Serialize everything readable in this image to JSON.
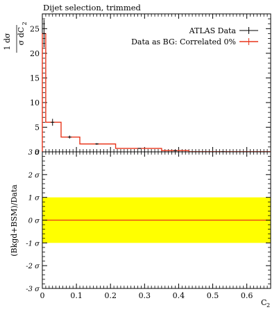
{
  "chart_data": [
    {
      "type": "line",
      "panel": "main",
      "title": "Dijet selection, trimmed",
      "ylabel_main": "1  dσ",
      "ylabel_sub": "σ  dC",
      "ylabel_sub_index": "2",
      "ylim": [
        0,
        28
      ],
      "yticks": [
        {
          "value": 0,
          "label": "0"
        },
        {
          "value": 5,
          "label": "5"
        },
        {
          "value": 10,
          "label": "10"
        },
        {
          "value": 15,
          "label": "15"
        },
        {
          "value": 20,
          "label": "20"
        },
        {
          "value": 25,
          "label": "25"
        }
      ],
      "xlim": [
        0,
        0.67
      ],
      "legend_placement": "top-right",
      "series": [
        {
          "name": "ATLAS Data",
          "color": "#000000",
          "points": [
            {
              "x": 0.005,
              "y": 24.0,
              "err": 2.8
            },
            {
              "x": 0.03,
              "y": 6.0,
              "err": 0.7
            },
            {
              "x": 0.08,
              "y": 3.0,
              "err": 0.3
            },
            {
              "x": 0.16,
              "y": 1.6,
              "err": 0.15
            },
            {
              "x": 0.285,
              "y": 0.7,
              "err": 0.05
            },
            {
              "x": 0.39,
              "y": 0.25,
              "err": 0.03
            },
            {
              "x": 0.53,
              "y": 0.03,
              "err": 0.02
            }
          ]
        },
        {
          "name": "Data as BG: Correlated 0%",
          "color": "#e8341a",
          "type": "step",
          "bins": [
            {
              "x0": 0.0,
              "x1": 0.01,
              "y": 24.0
            },
            {
              "x0": 0.01,
              "x1": 0.055,
              "y": 6.0
            },
            {
              "x0": 0.055,
              "x1": 0.11,
              "y": 3.0
            },
            {
              "x0": 0.11,
              "x1": 0.215,
              "y": 1.6
            },
            {
              "x0": 0.215,
              "x1": 0.35,
              "y": 0.7
            },
            {
              "x0": 0.35,
              "x1": 0.43,
              "y": 0.25
            },
            {
              "x0": 0.43,
              "x1": 0.67,
              "y": 0.03
            }
          ]
        }
      ]
    },
    {
      "type": "line",
      "panel": "ratio",
      "ylabel": "(Bkgd+BSM)/Data",
      "xlabel": "C",
      "xlabel_index": "2",
      "ylim": [
        -3,
        3
      ],
      "yticks": [
        {
          "value": 3,
          "label": "3 σ"
        },
        {
          "value": 2,
          "label": "2 σ"
        },
        {
          "value": 1,
          "label": "1 σ"
        },
        {
          "value": 0,
          "label": "0 σ"
        },
        {
          "value": -1,
          "label": "-1 σ"
        },
        {
          "value": -2,
          "label": "-2 σ"
        },
        {
          "value": -3,
          "label": "-3 σ"
        }
      ],
      "xlim": [
        0,
        0.67
      ],
      "xticks": [
        {
          "value": 0,
          "label": "0"
        },
        {
          "value": 0.1,
          "label": "0.1"
        },
        {
          "value": 0.2,
          "label": "0.2"
        },
        {
          "value": 0.3,
          "label": "0.3"
        },
        {
          "value": 0.4,
          "label": "0.4"
        },
        {
          "value": 0.5,
          "label": "0.5"
        },
        {
          "value": 0.6,
          "label": "0.6"
        }
      ],
      "band": {
        "low": -1,
        "high": 1,
        "color": "#ffff00"
      },
      "line": {
        "value": 0,
        "color": "#e8341a"
      }
    }
  ]
}
